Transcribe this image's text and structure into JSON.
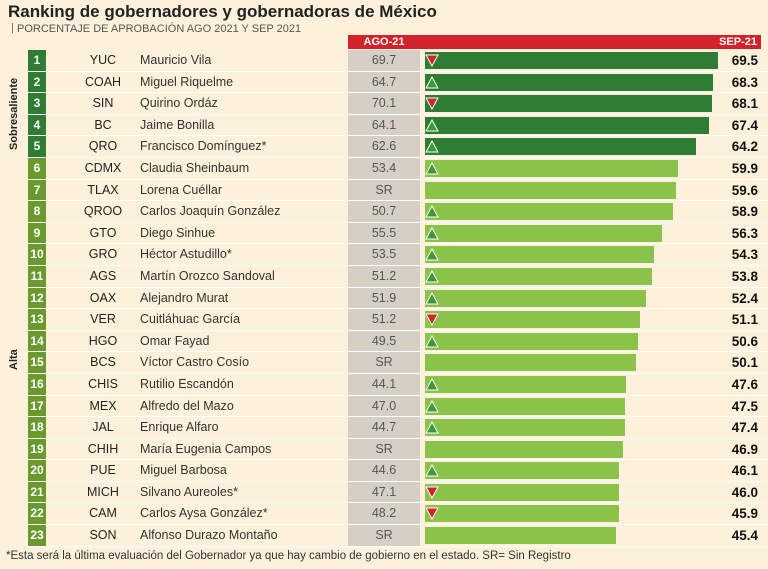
{
  "chart_data": {
    "type": "bar",
    "title": "Ranking de gobernadores y gobernadoras de México",
    "subtitle": "PORCENTAJE DE APROBACIÓN AGO 2021 Y SEP 2021",
    "col_prev": "AGO-21",
    "col_curr": "SEP-21",
    "xlim": [
      0,
      69.5
    ],
    "groups": [
      "Sobresaliente",
      "Alta"
    ],
    "rows": [
      {
        "rank": "1",
        "state": "YUC",
        "name": "Mauricio Vila",
        "ago": "69.7",
        "sep": 69.5,
        "sep_label": "69.5",
        "trend": "down",
        "group": "Sobresaliente"
      },
      {
        "rank": "2",
        "state": "COAH",
        "name": "Miguel Riquelme",
        "ago": "64.7",
        "sep": 68.3,
        "sep_label": "68.3",
        "trend": "up",
        "group": "Sobresaliente"
      },
      {
        "rank": "3",
        "state": "SIN",
        "name": "Quirino Ordáz",
        "ago": "70.1",
        "sep": 68.1,
        "sep_label": "68.1",
        "trend": "down",
        "group": "Sobresaliente"
      },
      {
        "rank": "4",
        "state": "BC",
        "name": "Jaime Bonilla",
        "ago": "64.1",
        "sep": 67.4,
        "sep_label": "67.4",
        "trend": "up",
        "group": "Sobresaliente"
      },
      {
        "rank": "5",
        "state": "QRO",
        "name": "Francisco Domínguez*",
        "ago": "62.6",
        "sep": 64.2,
        "sep_label": "64.2",
        "trend": "up",
        "group": "Sobresaliente"
      },
      {
        "rank": "6",
        "state": "CDMX",
        "name": "Claudia Sheinbaum",
        "ago": "53.4",
        "sep": 59.9,
        "sep_label": "59.9",
        "trend": "up",
        "group": "Alta"
      },
      {
        "rank": "7",
        "state": "TLAX",
        "name": "Lorena Cuéllar",
        "ago": "SR",
        "sep": 59.6,
        "sep_label": "59.6",
        "trend": "none",
        "group": "Alta"
      },
      {
        "rank": "8",
        "state": "QROO",
        "name": "Carlos Joaquín González",
        "ago": "50.7",
        "sep": 58.9,
        "sep_label": "58.9",
        "trend": "up",
        "group": "Alta"
      },
      {
        "rank": "9",
        "state": "GTO",
        "name": "Diego Sinhue",
        "ago": "55.5",
        "sep": 56.3,
        "sep_label": "56.3",
        "trend": "up",
        "group": "Alta"
      },
      {
        "rank": "10",
        "state": "GRO",
        "name": "Héctor Astudillo*",
        "ago": "53.5",
        "sep": 54.3,
        "sep_label": "54.3",
        "trend": "up",
        "group": "Alta"
      },
      {
        "rank": "11",
        "state": "AGS",
        "name": "Martín Orozco Sandoval",
        "ago": "51.2",
        "sep": 53.8,
        "sep_label": "53.8",
        "trend": "up",
        "group": "Alta"
      },
      {
        "rank": "12",
        "state": "OAX",
        "name": "Alejandro Murat",
        "ago": "51.9",
        "sep": 52.4,
        "sep_label": "52.4",
        "trend": "up",
        "group": "Alta"
      },
      {
        "rank": "13",
        "state": "VER",
        "name": "Cuitláhuac García",
        "ago": "51.2",
        "sep": 51.1,
        "sep_label": "51.1",
        "trend": "down",
        "group": "Alta"
      },
      {
        "rank": "14",
        "state": "HGO",
        "name": "Omar Fayad",
        "ago": "49.5",
        "sep": 50.6,
        "sep_label": "50.6",
        "trend": "up",
        "group": "Alta"
      },
      {
        "rank": "15",
        "state": "BCS",
        "name": "Víctor Castro Cosío",
        "ago": "SR",
        "sep": 50.1,
        "sep_label": "50.1",
        "trend": "none",
        "group": "Alta"
      },
      {
        "rank": "16",
        "state": "CHIS",
        "name": "Rutilio Escandón",
        "ago": "44.1",
        "sep": 47.6,
        "sep_label": "47.6",
        "trend": "up",
        "group": "Alta"
      },
      {
        "rank": "17",
        "state": "MEX",
        "name": "Alfredo del Mazo",
        "ago": "47.0",
        "sep": 47.5,
        "sep_label": "47.5",
        "trend": "up",
        "group": "Alta"
      },
      {
        "rank": "18",
        "state": "JAL",
        "name": "Enrique Alfaro",
        "ago": "44.7",
        "sep": 47.4,
        "sep_label": "47.4",
        "trend": "up",
        "group": "Alta"
      },
      {
        "rank": "19",
        "state": "CHIH",
        "name": "María Eugenia Campos",
        "ago": "SR",
        "sep": 46.9,
        "sep_label": "46.9",
        "trend": "none",
        "group": "Alta"
      },
      {
        "rank": "20",
        "state": "PUE",
        "name": "Miguel Barbosa",
        "ago": "44.6",
        "sep": 46.1,
        "sep_label": "46.1",
        "trend": "up",
        "group": "Alta"
      },
      {
        "rank": "21",
        "state": "MICH",
        "name": "Silvano Aureoles*",
        "ago": "47.1",
        "sep": 46.0,
        "sep_label": "46.0",
        "trend": "down",
        "group": "Alta"
      },
      {
        "rank": "22",
        "state": "CAM",
        "name": "Carlos Aysa González*",
        "ago": "48.2",
        "sep": 45.9,
        "sep_label": "45.9",
        "trend": "down",
        "group": "Alta"
      },
      {
        "rank": "23",
        "state": "SON",
        "name": "Alfonso Durazo Montaño",
        "ago": "SR",
        "sep": 45.4,
        "sep_label": "45.4",
        "trend": "none",
        "group": "Alta"
      }
    ],
    "footnote": "*Esta será la última evaluación del Gobernador ya que hay cambio de gobierno en el estado.  SR= Sin Registro"
  },
  "colors": {
    "accent_red": "#d2232a",
    "dark_green": "#2e7d32",
    "light_green": "#8bc34a",
    "up_green": "#3a9a3a",
    "down_red": "#d2232a"
  }
}
